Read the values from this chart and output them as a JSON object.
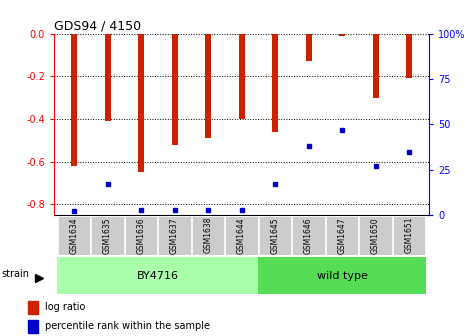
{
  "title": "GDS94 / 4150",
  "samples": [
    "GSM1634",
    "GSM1635",
    "GSM1636",
    "GSM1637",
    "GSM1638",
    "GSM1644",
    "GSM1645",
    "GSM1646",
    "GSM1647",
    "GSM1650",
    "GSM1651"
  ],
  "log_ratios": [
    -0.62,
    -0.41,
    -0.65,
    -0.52,
    -0.49,
    -0.4,
    -0.46,
    -0.13,
    -0.01,
    -0.3,
    -0.21
  ],
  "percentile_ranks": [
    2,
    17,
    3,
    3,
    3,
    3,
    17,
    38,
    47,
    27,
    35
  ],
  "strain_groups": [
    {
      "label": "BY4716",
      "start": 0,
      "end": 5
    },
    {
      "label": "wild type",
      "start": 6,
      "end": 10
    }
  ],
  "bar_color": "#cc2200",
  "percentile_color": "#0000cc",
  "ylim_left": [
    -0.85,
    0.0
  ],
  "ylim_right": [
    0,
    100
  ],
  "yticks_left": [
    -0.8,
    -0.6,
    -0.4,
    -0.2,
    0.0
  ],
  "yticks_right": [
    0,
    25,
    50,
    75,
    100
  ],
  "right_tick_labels": [
    "0",
    "25",
    "50",
    "75",
    "100%"
  ],
  "grid_color": "black",
  "background_color": "#ffffff",
  "strain_bg_light": "#aaffaa",
  "strain_bg_mid": "#55dd55",
  "tick_bg": "#cccccc",
  "strain_label": "strain",
  "legend_log_ratio": "log ratio",
  "legend_percentile": "percentile rank within the sample",
  "bar_width": 0.18
}
